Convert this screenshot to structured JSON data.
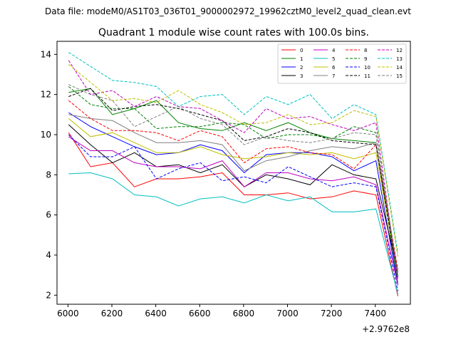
{
  "suptitle": "Data file: modeM0/AS1T03_036T01_9000002972_19962cztM0_level2_quad_clean.evt",
  "chart_data": {
    "type": "line",
    "title": "Quadrant 1 module wise count rates with 100.0s bins.",
    "xlabel": "",
    "ylabel": "",
    "x_offset_label": "+2.9762e8",
    "xlim": [
      5950,
      7560
    ],
    "ylim": [
      1.55,
      14.65
    ],
    "xticks": [
      6000,
      6200,
      6400,
      6600,
      6800,
      7000,
      7200,
      7400
    ],
    "yticks": [
      2,
      4,
      6,
      8,
      10,
      12,
      14
    ],
    "grid": false,
    "legend_position": "top-right",
    "x": [
      6003,
      6103,
      6203,
      6303,
      6403,
      6503,
      6603,
      6703,
      6803,
      6903,
      7003,
      7103,
      7203,
      7303,
      7403,
      7503
    ],
    "series": [
      {
        "name": "0",
        "color": "#ff0000",
        "style": "solid",
        "values": [
          10.1,
          8.4,
          8.6,
          7.4,
          7.8,
          7.8,
          7.9,
          8.1,
          7.0,
          7.0,
          7.1,
          6.8,
          6.9,
          7.2,
          7.0,
          1.95
        ]
      },
      {
        "name": "1",
        "color": "#008000",
        "style": "solid",
        "values": [
          12.1,
          12.3,
          11.0,
          11.3,
          11.7,
          10.6,
          10.3,
          10.2,
          10.6,
          10.2,
          10.6,
          10.1,
          9.8,
          9.7,
          9.6,
          2.6
        ]
      },
      {
        "name": "2",
        "color": "#0000ff",
        "style": "solid",
        "values": [
          11.1,
          10.4,
          9.9,
          9.4,
          9.0,
          9.1,
          9.5,
          9.2,
          8.1,
          9.0,
          9.1,
          9.1,
          8.9,
          8.2,
          8.7,
          2.5
        ]
      },
      {
        "name": "3",
        "color": "#000000",
        "style": "solid",
        "values": [
          10.5,
          9.5,
          8.6,
          9.1,
          8.4,
          8.5,
          8.1,
          8.5,
          7.4,
          8.0,
          7.8,
          7.5,
          8.5,
          8.0,
          7.8,
          3.2
        ]
      },
      {
        "name": "4",
        "color": "#bf00bf",
        "style": "solid",
        "values": [
          9.9,
          9.2,
          9.2,
          8.6,
          8.4,
          8.4,
          8.3,
          8.7,
          7.4,
          8.1,
          8.1,
          7.8,
          7.7,
          7.9,
          7.5,
          2.5
        ]
      },
      {
        "name": "5",
        "color": "#00bfbf",
        "style": "solid",
        "values": [
          8.05,
          8.1,
          7.8,
          7.0,
          6.9,
          6.45,
          6.8,
          6.9,
          6.6,
          7.0,
          6.7,
          6.9,
          6.15,
          6.15,
          6.3,
          2.05
        ]
      },
      {
        "name": "6",
        "color": "#bfbf00",
        "style": "solid",
        "values": [
          10.8,
          9.9,
          10.1,
          9.6,
          9.1,
          9.1,
          9.4,
          9.0,
          8.8,
          8.9,
          9.1,
          9.0,
          9.1,
          8.8,
          9.1,
          3.0
        ]
      },
      {
        "name": "7",
        "color": "#808080",
        "style": "solid",
        "values": [
          11.0,
          10.8,
          10.7,
          10.1,
          9.6,
          9.6,
          9.7,
          9.5,
          8.2,
          8.7,
          8.9,
          9.2,
          9.4,
          9.3,
          9.6,
          3.2
        ]
      },
      {
        "name": "8",
        "color": "#ff0000",
        "style": "dashed",
        "values": [
          11.7,
          10.8,
          10.2,
          10.2,
          10.1,
          9.7,
          10.2,
          9.9,
          8.6,
          9.3,
          9.4,
          9.1,
          9.0,
          8.3,
          9.5,
          3.3
        ]
      },
      {
        "name": "9",
        "color": "#008000",
        "style": "dashed",
        "values": [
          12.4,
          11.5,
          11.3,
          11.3,
          10.3,
          10.4,
          10.4,
          10.6,
          10.5,
          9.8,
          10.0,
          10.0,
          9.8,
          10.4,
          10.1,
          2.9
        ]
      },
      {
        "name": "10",
        "color": "#0000ff",
        "style": "dashed",
        "values": [
          10.0,
          8.9,
          8.9,
          9.4,
          7.8,
          8.3,
          8.6,
          7.7,
          7.9,
          7.6,
          8.4,
          7.9,
          7.4,
          7.6,
          7.4,
          2.2
        ]
      },
      {
        "name": "11",
        "color": "#000000",
        "style": "dashed",
        "values": [
          11.9,
          12.3,
          11.2,
          11.4,
          11.5,
          11.3,
          11.0,
          10.7,
          9.7,
          9.9,
          10.3,
          10.1,
          9.7,
          9.6,
          9.5,
          2.9
        ]
      },
      {
        "name": "12",
        "color": "#bf00bf",
        "style": "dashed",
        "values": [
          13.7,
          12.0,
          12.2,
          11.4,
          11.9,
          11.4,
          11.3,
          10.7,
          10.1,
          11.3,
          10.8,
          10.9,
          10.5,
          10.2,
          10.6,
          2.8
        ]
      },
      {
        "name": "13",
        "color": "#00bfbf",
        "style": "dashed",
        "values": [
          14.1,
          13.4,
          12.7,
          12.6,
          12.4,
          11.4,
          11.9,
          12.0,
          11.0,
          11.9,
          11.5,
          12.0,
          10.8,
          11.5,
          11.0,
          4.1
        ]
      },
      {
        "name": "14",
        "color": "#bfbf00",
        "style": "dashed",
        "values": [
          13.5,
          12.6,
          11.7,
          11.8,
          11.6,
          12.2,
          11.5,
          11.1,
          10.5,
          10.6,
          11.0,
          10.5,
          10.6,
          11.2,
          10.9,
          3.9
        ]
      },
      {
        "name": "15",
        "color": "#808080",
        "style": "dashed",
        "values": [
          12.5,
          12.0,
          11.7,
          10.4,
          10.9,
          11.4,
          10.8,
          10.5,
          9.5,
          9.9,
          9.7,
          9.6,
          9.8,
          10.1,
          10.0,
          3.1
        ]
      }
    ]
  }
}
